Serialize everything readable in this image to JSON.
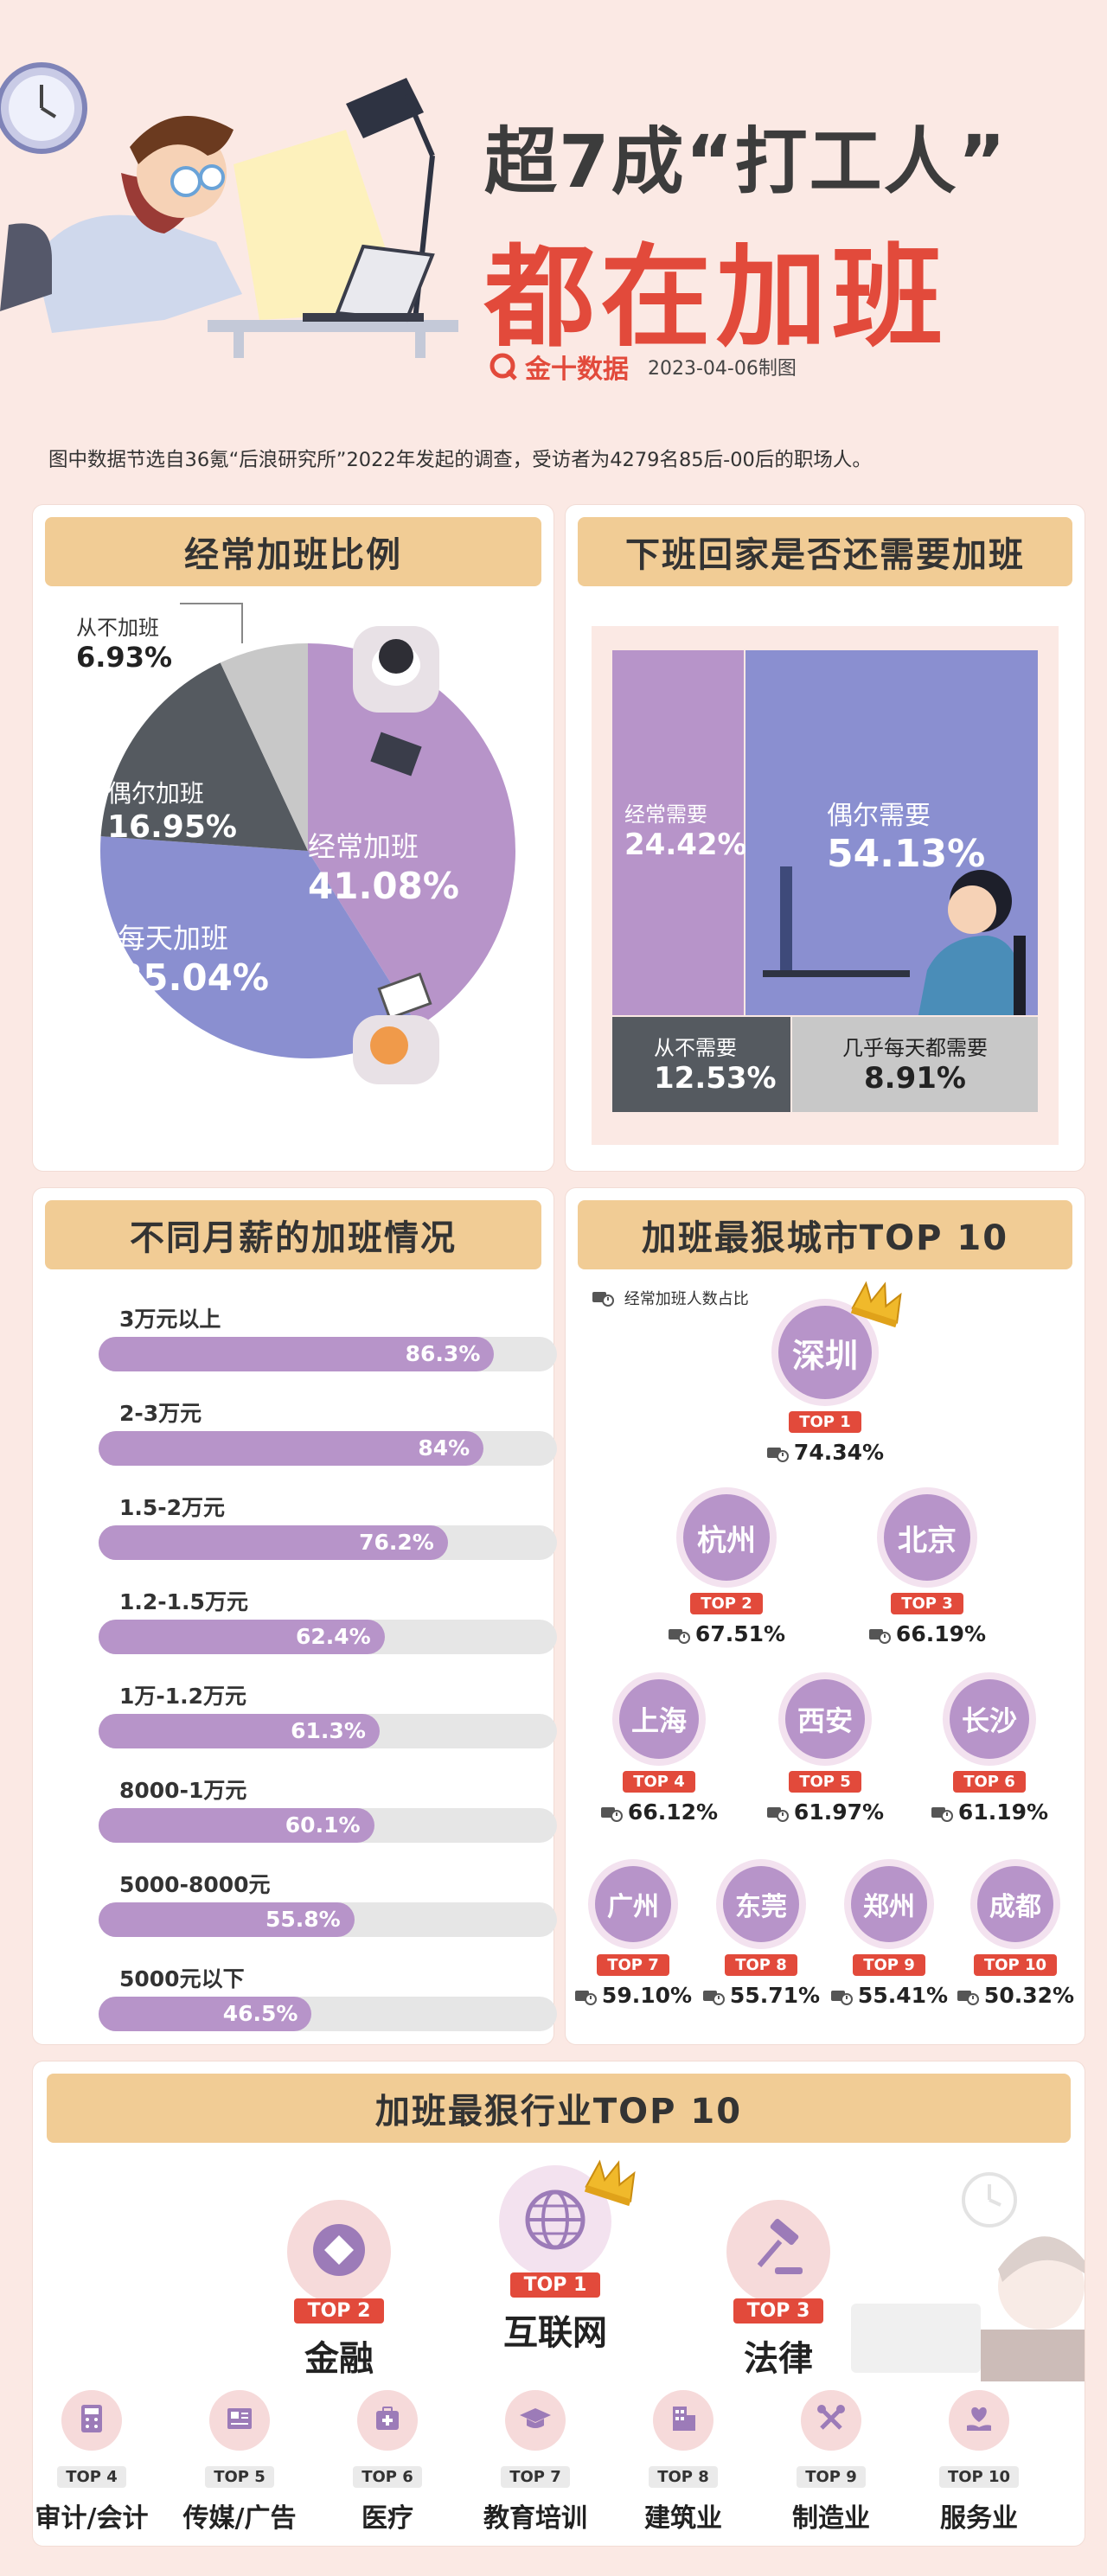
{
  "header": {
    "title_line1": "超7成“打工人”",
    "title_line2": "都在加班",
    "brand": "金十数据",
    "date": "2023-04-06制图"
  },
  "intro": "图中数据节选自36氪“后浪研究所”2022年发起的调查，受访者为4279名85后-00后的职场人。",
  "colors": {
    "accent_red": "#e24a3b",
    "purple": "#b794c9",
    "blue_purple": "#8a8fd0",
    "dark_gray": "#555a60",
    "light_gray": "#c8c8c8",
    "title_bar": "#f1cc95"
  },
  "chart_data": [
    {
      "type": "pie",
      "title": "经常加班比例",
      "slices": [
        {
          "name": "经常加班",
          "value": 41.08,
          "label": "41.08%"
        },
        {
          "name": "每天加班",
          "value": 35.04,
          "label": "35.04%"
        },
        {
          "name": "偶尔加班",
          "value": 16.95,
          "label": "16.95%"
        },
        {
          "name": "从不加班",
          "value": 6.93,
          "label": "6.93%"
        }
      ]
    },
    {
      "type": "treemap",
      "title": "下班回家是否还需要加班",
      "items": [
        {
          "name": "经常需要",
          "value": 24.42,
          "label": "24.42%"
        },
        {
          "name": "偶尔需要",
          "value": 54.13,
          "label": "54.13%"
        },
        {
          "name": "从不需要",
          "value": 12.53,
          "label": "12.53%"
        },
        {
          "name": "几乎每天都需要",
          "value": 8.91,
          "label": "8.91%"
        }
      ]
    },
    {
      "type": "bar",
      "title": "不同月薪的加班情况",
      "categories": [
        "3万元以上",
        "2-3万元",
        "1.5-2万元",
        "1.2-1.5万元",
        "1万-1.2万元",
        "8000-1万元",
        "5000-8000元",
        "5000元以下"
      ],
      "values": [
        86.3,
        84,
        76.2,
        62.4,
        61.3,
        60.1,
        55.8,
        46.5
      ],
      "labels": [
        "86.3%",
        "84%",
        "76.2%",
        "62.4%",
        "61.3%",
        "60.1%",
        "55.8%",
        "46.5%"
      ],
      "ylim": [
        0,
        100
      ]
    },
    {
      "type": "table",
      "title": "加班最狠城市TOP 10",
      "legend": "经常加班人数占比",
      "cities": [
        {
          "rank": "TOP 1",
          "name": "深圳",
          "value": 74.34,
          "label": "74.34%"
        },
        {
          "rank": "TOP 2",
          "name": "杭州",
          "value": 67.51,
          "label": "67.51%"
        },
        {
          "rank": "TOP 3",
          "name": "北京",
          "value": 66.19,
          "label": "66.19%"
        },
        {
          "rank": "TOP 4",
          "name": "上海",
          "value": 66.12,
          "label": "66.12%"
        },
        {
          "rank": "TOP 5",
          "name": "西安",
          "value": 61.97,
          "label": "61.97%"
        },
        {
          "rank": "TOP 6",
          "name": "长沙",
          "value": 61.19,
          "label": "61.19%"
        },
        {
          "rank": "TOP 7",
          "name": "广州",
          "value": 59.1,
          "label": "59.10%"
        },
        {
          "rank": "TOP 8",
          "name": "东莞",
          "value": 55.71,
          "label": "55.71%"
        },
        {
          "rank": "TOP 9",
          "name": "郑州",
          "value": 55.41,
          "label": "55.41%"
        },
        {
          "rank": "TOP 10",
          "name": "成都",
          "value": 50.32,
          "label": "50.32%"
        }
      ]
    },
    {
      "type": "table",
      "title": "加班最狠行业TOP 10",
      "industries": [
        {
          "rank": "TOP 1",
          "name": "互联网",
          "icon": "globe-icon"
        },
        {
          "rank": "TOP 2",
          "name": "金融",
          "icon": "diamond-icon"
        },
        {
          "rank": "TOP 3",
          "name": "法律",
          "icon": "gavel-icon"
        },
        {
          "rank": "TOP 4",
          "name": "审计/会计",
          "icon": "calculator-icon"
        },
        {
          "rank": "TOP 5",
          "name": "传媒/广告",
          "icon": "newspaper-icon"
        },
        {
          "rank": "TOP 6",
          "name": "医疗",
          "icon": "medical-kit-icon"
        },
        {
          "rank": "TOP 7",
          "name": "教育培训",
          "icon": "graduation-cap-icon"
        },
        {
          "rank": "TOP 8",
          "name": "建筑业",
          "icon": "building-icon"
        },
        {
          "rank": "TOP 9",
          "name": "制造业",
          "icon": "tools-icon"
        },
        {
          "rank": "TOP 10",
          "name": "服务业",
          "icon": "heart-hand-icon"
        }
      ]
    }
  ]
}
